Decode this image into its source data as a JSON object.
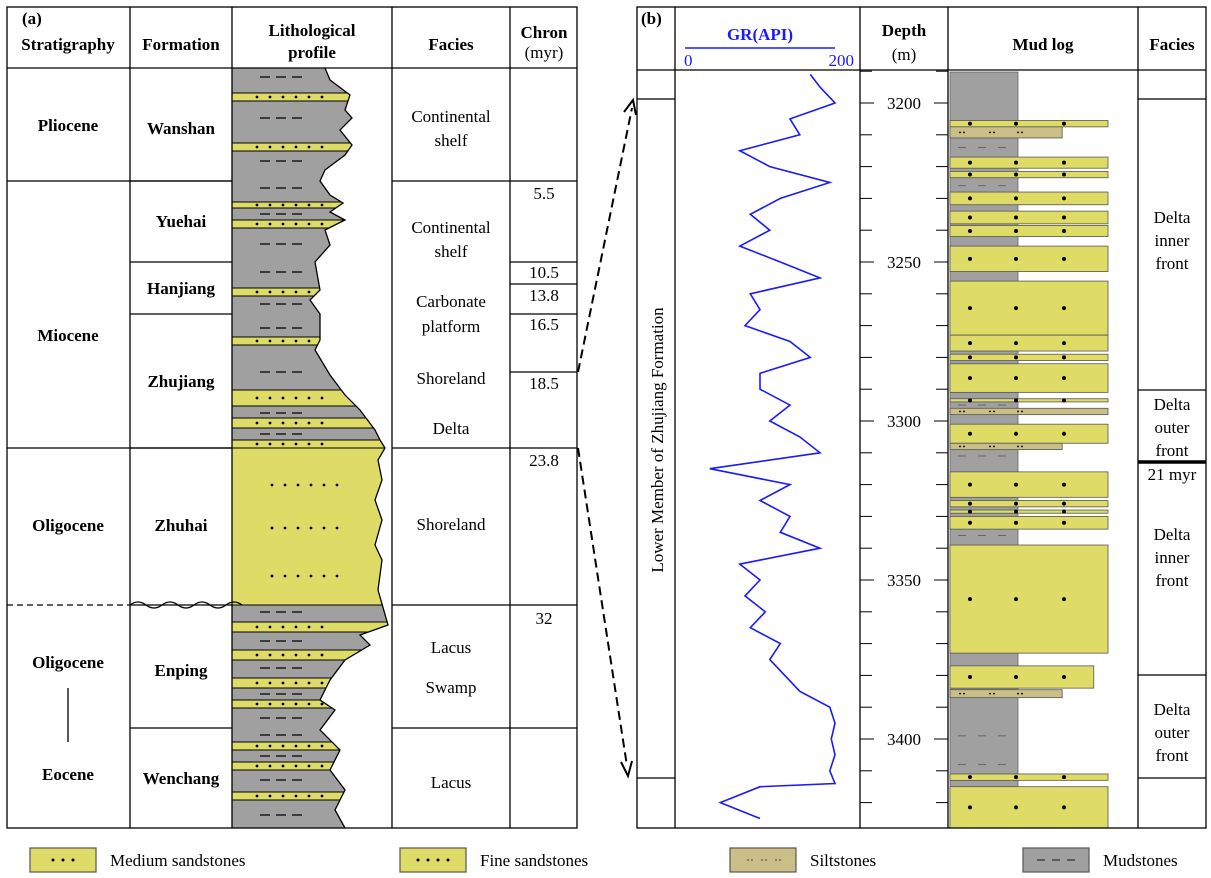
{
  "panel_a": {
    "label": "(a)",
    "headers": {
      "stratigraphy": "Stratigraphy",
      "formation": "Formation",
      "litho_1": "Lithological",
      "litho_2": "profile",
      "facies": "Facies",
      "chron_1": "Chron",
      "chron_2": "(myr)"
    },
    "stratigraphy": [
      "Pliocene",
      "Miocene",
      "Oligocene",
      "Oligocene",
      "Eocene"
    ],
    "formations": [
      "Wanshan",
      "Yuehai",
      "Hanjiang",
      "Zhujiang",
      "Zhuhai",
      "Enping",
      "Wenchang"
    ],
    "facies": {
      "f1a": "Continental",
      "f1b": "shelf",
      "f2a": "Continental",
      "f2b": "shelf",
      "f3a": "Carbonate",
      "f3b": "platform",
      "f4": "Shoreland",
      "f5": "Delta",
      "f6": "Shoreland",
      "f7a": "Lacus",
      "f7b": "Swamp",
      "f8": "Lacus"
    },
    "chron": [
      "5.5",
      "10.5",
      "13.8",
      "16.5",
      "18.5",
      "23.8",
      "32"
    ]
  },
  "panel_b": {
    "label": "(b)",
    "gr_title": "GR(API)",
    "gr_min": "0",
    "gr_max": "200",
    "depth_title": "Depth",
    "depth_unit": "(m)",
    "mudlog_title": "Mud log",
    "facies_title": "Facies",
    "member_label": "Lower Member of Zhujiang Formation",
    "facies": {
      "a1": "Delta",
      "a2": "inner",
      "a3": "front",
      "b1": "Delta",
      "b2": "outer",
      "b3": "front",
      "age": "21 myr",
      "c1": "Delta",
      "c2": "inner",
      "c3": "front",
      "d1": "Delta",
      "d2": "outer",
      "d3": "front"
    },
    "depth_ticks": [
      "3200",
      "3250",
      "3300",
      "3350",
      "3400"
    ]
  },
  "legend": {
    "medium": "Medium sandstones",
    "fine": "Fine sandstones",
    "silt": "Siltstones",
    "mud": "Mudstones"
  },
  "colors": {
    "sand": "#dedc66",
    "silt": "#c9bf87",
    "mud": "#a0a0a0",
    "gr": "#1a1aff"
  },
  "chart_data": {
    "type": "line",
    "title": "GR(API)",
    "xlabel": "GR (API)",
    "ylabel": "Depth (m)",
    "xlim": [
      0,
      200
    ],
    "ylim": [
      3190,
      3428
    ],
    "depth": [
      3191,
      3195,
      3200,
      3205,
      3210,
      3215,
      3220,
      3225,
      3230,
      3235,
      3240,
      3245,
      3250,
      3255,
      3260,
      3265,
      3270,
      3275,
      3280,
      3285,
      3290,
      3295,
      3300,
      3305,
      3310,
      3315,
      3320,
      3325,
      3330,
      3335,
      3340,
      3345,
      3350,
      3355,
      3360,
      3365,
      3370,
      3375,
      3380,
      3385,
      3390,
      3395,
      3400,
      3405,
      3410,
      3414,
      3415,
      3420,
      3425
    ],
    "gr": [
      167,
      180,
      200,
      140,
      153,
      73,
      113,
      193,
      127,
      87,
      113,
      73,
      127,
      180,
      87,
      100,
      80,
      140,
      167,
      100,
      100,
      140,
      113,
      153,
      180,
      33,
      140,
      100,
      140,
      127,
      180,
      73,
      100,
      80,
      107,
      87,
      127,
      113,
      133,
      153,
      193,
      200,
      195,
      200,
      193,
      200,
      100,
      47,
      100
    ],
    "beds": [
      [
        3205.5,
        3207.5,
        "fine",
        1
      ],
      [
        3207.5,
        3211,
        "silt",
        0.71
      ],
      [
        3217,
        3220.5,
        "fine",
        1
      ],
      [
        3221.5,
        3223.5,
        "fine",
        1
      ],
      [
        3228,
        3232,
        "fine",
        1
      ],
      [
        3234,
        3238,
        "fine",
        1
      ],
      [
        3238.5,
        3242,
        "fine",
        1
      ],
      [
        3245,
        3253,
        "fine",
        1
      ],
      [
        3256,
        3273,
        "medium",
        1
      ],
      [
        3273,
        3278,
        "medium",
        1
      ],
      [
        3279,
        3281,
        "fine",
        1
      ],
      [
        3282,
        3291,
        "medium",
        1
      ],
      [
        3293,
        3294,
        "fine",
        1
      ],
      [
        3296,
        3298,
        "silt",
        1
      ],
      [
        3301,
        3307,
        "fine",
        1
      ],
      [
        3307,
        3309,
        "silt",
        0.71
      ],
      [
        3316,
        3324,
        "fine",
        1
      ],
      [
        3325,
        3327,
        "fine",
        1
      ],
      [
        3328,
        3329,
        "fine",
        1
      ],
      [
        3330,
        3334,
        "fine",
        1
      ],
      [
        3339,
        3373,
        "medium",
        1
      ],
      [
        3377,
        3384,
        "fine",
        0.91
      ],
      [
        3384.5,
        3387,
        "silt",
        0.71
      ],
      [
        3411,
        3413,
        "fine",
        1
      ],
      [
        3415,
        3430,
        "medium",
        1
      ]
    ]
  }
}
